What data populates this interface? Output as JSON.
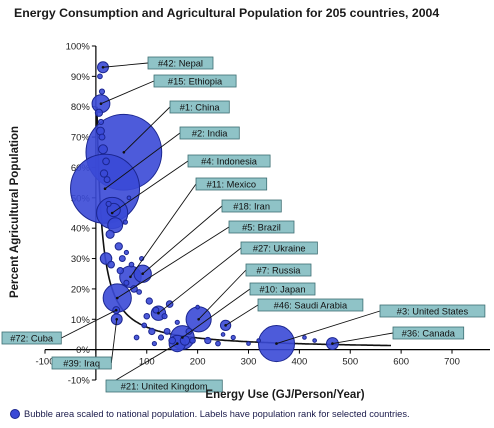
{
  "chart_data": {
    "type": "scatter",
    "title": "Energy Consumption and Agricultural Population for 205 countries, 2004",
    "xlabel": "Energy Use (GJ/Person/Year)",
    "ylabel": "Percent Agricultural Population",
    "xlim": [
      -100,
      800
    ],
    "ylim": [
      -10,
      100
    ],
    "x_ticks": [
      "-100",
      "0",
      "100",
      "200",
      "300",
      "400",
      "500",
      "600",
      "700"
    ],
    "y_ticks": [
      "-10%",
      "0%",
      "10%",
      "20%",
      "30%",
      "40%",
      "50%",
      "60%",
      "70%",
      "80%",
      "90%",
      "100%"
    ],
    "note": "Bubble area scaled to national population.  Labels have population rank for selected countries.",
    "labeled_countries": [
      {
        "label": "#42: Nepal",
        "x": 14,
        "y": 93,
        "size": 27
      },
      {
        "label": "#15: Ethiopia",
        "x": 10,
        "y": 81,
        "size": 72
      },
      {
        "label": "#1: China",
        "x": 55,
        "y": 65,
        "size": 1300
      },
      {
        "label": "#2: India",
        "x": 18,
        "y": 53,
        "size": 1080
      },
      {
        "label": "#4: Indonesia",
        "x": 32,
        "y": 45,
        "size": 220
      },
      {
        "label": "#11: Mexico",
        "x": 68,
        "y": 24,
        "size": 105
      },
      {
        "label": "#18: Iran",
        "x": 92,
        "y": 25,
        "size": 68
      },
      {
        "label": "#5: Brazil",
        "x": 42,
        "y": 17,
        "size": 180
      },
      {
        "label": "#27: Ukraine",
        "x": 123,
        "y": 12,
        "size": 47
      },
      {
        "label": "#7: Russia",
        "x": 202,
        "y": 10,
        "size": 143
      },
      {
        "label": "#10: Japan",
        "x": 170,
        "y": 4,
        "size": 127
      },
      {
        "label": "#46: Saudi Arabia",
        "x": 255,
        "y": 8,
        "size": 24
      },
      {
        "label": "#3: United States",
        "x": 355,
        "y": 2,
        "size": 295
      },
      {
        "label": "#36: Canada",
        "x": 465,
        "y": 2,
        "size": 32
      },
      {
        "label": "#72: Cuba",
        "x": 40,
        "y": 13,
        "size": 11
      },
      {
        "label": "#39: Iraq",
        "x": 41,
        "y": 10,
        "size": 27
      },
      {
        "label": "#21: United Kingdom",
        "x": 160,
        "y": 2,
        "size": 60
      }
    ],
    "other_countries": [
      {
        "x": 8,
        "y": 90,
        "size": 5
      },
      {
        "x": 12,
        "y": 85,
        "size": 6
      },
      {
        "x": 6,
        "y": 78,
        "size": 12
      },
      {
        "x": 10,
        "y": 75,
        "size": 6
      },
      {
        "x": 9,
        "y": 72,
        "size": 14
      },
      {
        "x": 12,
        "y": 70,
        "size": 8
      },
      {
        "x": 14,
        "y": 66,
        "size": 18
      },
      {
        "x": 20,
        "y": 62,
        "size": 10
      },
      {
        "x": 16,
        "y": 58,
        "size": 12
      },
      {
        "x": 22,
        "y": 56,
        "size": 8
      },
      {
        "x": 25,
        "y": 48,
        "size": 6
      },
      {
        "x": 35,
        "y": 46,
        "size": 40
      },
      {
        "x": 38,
        "y": 41,
        "size": 50
      },
      {
        "x": 28,
        "y": 38,
        "size": 15
      },
      {
        "x": 45,
        "y": 34,
        "size": 12
      },
      {
        "x": 52,
        "y": 30,
        "size": 8
      },
      {
        "x": 20,
        "y": 30,
        "size": 30
      },
      {
        "x": 30,
        "y": 28,
        "size": 10
      },
      {
        "x": 48,
        "y": 26,
        "size": 9
      },
      {
        "x": 60,
        "y": 22,
        "size": 6
      },
      {
        "x": 75,
        "y": 20,
        "size": 10
      },
      {
        "x": 85,
        "y": 19,
        "size": 5
      },
      {
        "x": 105,
        "y": 16,
        "size": 9
      },
      {
        "x": 118,
        "y": 13,
        "size": 8
      },
      {
        "x": 135,
        "y": 11,
        "size": 6
      },
      {
        "x": 145,
        "y": 15,
        "size": 10
      },
      {
        "x": 100,
        "y": 11,
        "size": 7
      },
      {
        "x": 110,
        "y": 6,
        "size": 9
      },
      {
        "x": 128,
        "y": 4,
        "size": 6
      },
      {
        "x": 140,
        "y": 6,
        "size": 8
      },
      {
        "x": 150,
        "y": 3,
        "size": 10
      },
      {
        "x": 175,
        "y": 3,
        "size": 20
      },
      {
        "x": 183,
        "y": 6,
        "size": 8
      },
      {
        "x": 190,
        "y": 3,
        "size": 7
      },
      {
        "x": 220,
        "y": 3,
        "size": 9
      },
      {
        "x": 240,
        "y": 2,
        "size": 5
      },
      {
        "x": 270,
        "y": 4,
        "size": 4
      },
      {
        "x": 300,
        "y": 2,
        "size": 3
      },
      {
        "x": 320,
        "y": 3,
        "size": 3
      },
      {
        "x": 410,
        "y": 4,
        "size": 3
      },
      {
        "x": 430,
        "y": 3,
        "size": 3
      },
      {
        "x": 60,
        "y": 32,
        "size": 4
      },
      {
        "x": 70,
        "y": 28,
        "size": 5
      },
      {
        "x": 90,
        "y": 30,
        "size": 4
      },
      {
        "x": 58,
        "y": 42,
        "size": 4
      },
      {
        "x": 65,
        "y": 50,
        "size": 3
      },
      {
        "x": 95,
        "y": 8,
        "size": 5
      },
      {
        "x": 200,
        "y": 14,
        "size": 3
      },
      {
        "x": 250,
        "y": 5,
        "size": 3
      },
      {
        "x": 160,
        "y": 9,
        "size": 4
      },
      {
        "x": 80,
        "y": 4,
        "size": 5
      },
      {
        "x": 115,
        "y": 2,
        "size": 4
      }
    ],
    "grid": false,
    "legend": "bottom-left"
  },
  "colors": {
    "bubble_fill": "#3a49d6",
    "bubble_stroke": "#1b2690",
    "label_box": "#8fc3c7",
    "label_border": "#3e6f73",
    "axis": "#000000"
  }
}
